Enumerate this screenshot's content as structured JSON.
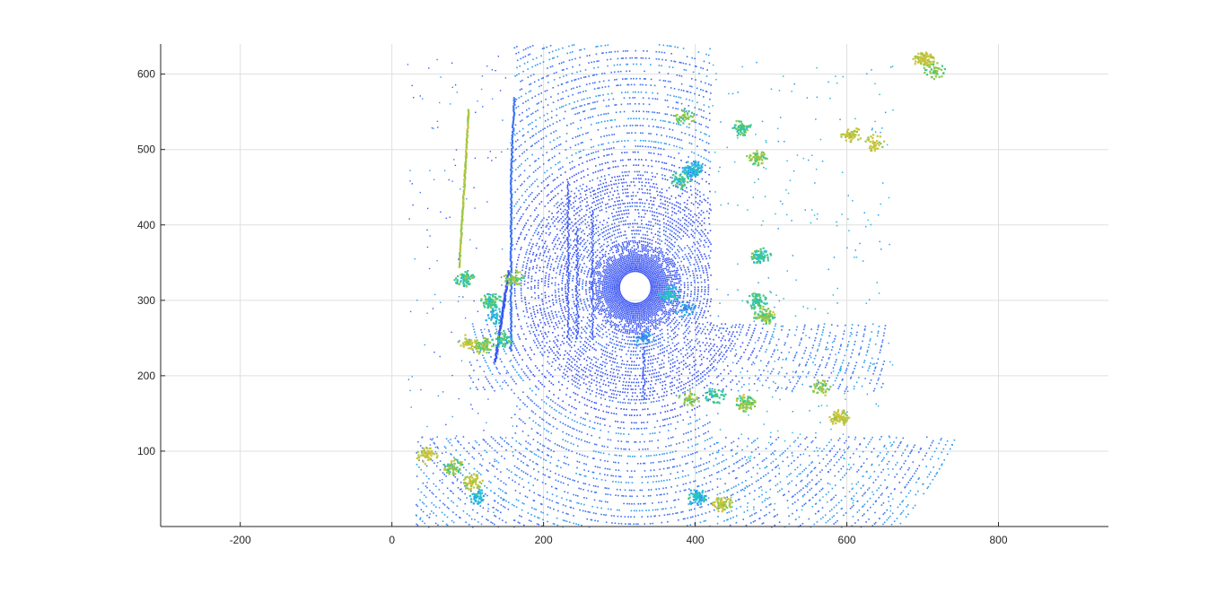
{
  "chart_data": {
    "type": "scatter",
    "title": "",
    "xlabel": "",
    "ylabel": "",
    "xlim": [
      -305,
      945
    ],
    "ylim": [
      0,
      640
    ],
    "grid": true,
    "x_ticks": [
      -200,
      0,
      200,
      400,
      600,
      800
    ],
    "y_ticks": [
      100,
      200,
      300,
      400,
      500,
      600
    ],
    "x_tick_labels": [
      "-200",
      "0",
      "200",
      "400",
      "600",
      "800"
    ],
    "y_tick_labels": [
      "100",
      "200",
      "300",
      "400",
      "500",
      "600"
    ],
    "colormap": [
      "#3a55f2",
      "#3c72f3",
      "#2f9bf0",
      "#25bdd8",
      "#3cc88f",
      "#8cc84a",
      "#c9c43a"
    ],
    "lidar_center": [
      320,
      318
    ],
    "lidar_hole_radius": 20,
    "clusters": [
      {
        "x": 95,
        "y": 330,
        "c": 4
      },
      {
        "x": 160,
        "y": 330,
        "c": 5
      },
      {
        "x": 130,
        "y": 300,
        "c": 4
      },
      {
        "x": 120,
        "y": 240,
        "c": 5
      },
      {
        "x": 145,
        "y": 250,
        "c": 4
      },
      {
        "x": 135,
        "y": 280,
        "c": 3
      },
      {
        "x": 100,
        "y": 245,
        "c": 6
      },
      {
        "x": 45,
        "y": 95,
        "c": 6
      },
      {
        "x": 80,
        "y": 80,
        "c": 5
      },
      {
        "x": 105,
        "y": 60,
        "c": 6
      },
      {
        "x": 110,
        "y": 40,
        "c": 3
      },
      {
        "x": 365,
        "y": 310,
        "c": 3
      },
      {
        "x": 385,
        "y": 290,
        "c": 2
      },
      {
        "x": 380,
        "y": 460,
        "c": 4
      },
      {
        "x": 395,
        "y": 475,
        "c": 3
      },
      {
        "x": 390,
        "y": 170,
        "c": 5
      },
      {
        "x": 425,
        "y": 175,
        "c": 4
      },
      {
        "x": 465,
        "y": 165,
        "c": 5
      },
      {
        "x": 480,
        "y": 300,
        "c": 4
      },
      {
        "x": 490,
        "y": 280,
        "c": 5
      },
      {
        "x": 485,
        "y": 360,
        "c": 4
      },
      {
        "x": 565,
        "y": 185,
        "c": 5
      },
      {
        "x": 590,
        "y": 145,
        "c": 6
      },
      {
        "x": 605,
        "y": 520,
        "c": 6
      },
      {
        "x": 635,
        "y": 510,
        "c": 6
      },
      {
        "x": 480,
        "y": 490,
        "c": 5
      },
      {
        "x": 715,
        "y": 605,
        "c": 5
      },
      {
        "x": 435,
        "y": 30,
        "c": 6
      },
      {
        "x": 400,
        "y": 40,
        "c": 3
      },
      {
        "x": 385,
        "y": 545,
        "c": 5
      },
      {
        "x": 330,
        "y": 250,
        "c": 2
      },
      {
        "x": 460,
        "y": 530,
        "c": 4
      },
      {
        "x": 700,
        "y": 620,
        "c": 6
      }
    ]
  }
}
